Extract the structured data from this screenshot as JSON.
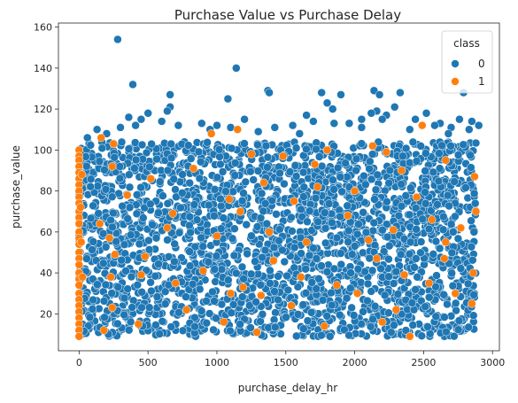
{
  "colors": {
    "class_0": "#1f77b4",
    "class_1": "#ff7f0e",
    "marker_edge": "#ffffff"
  },
  "chart_data": {
    "type": "scatter",
    "title": "Purchase Value vs Purchase Delay",
    "xlabel": "purchase_delay_hr",
    "ylabel": "purchase_value",
    "xlim": [
      -150,
      3050
    ],
    "ylim": [
      2,
      162
    ],
    "xticks": [
      0,
      500,
      1000,
      1500,
      2000,
      2500,
      3000
    ],
    "yticks": [
      20,
      40,
      60,
      80,
      100,
      120,
      140,
      160
    ],
    "grid": false,
    "legend": {
      "title": "class",
      "placement": "top-right",
      "entries": [
        "0",
        "1"
      ]
    },
    "series": [
      {
        "name": "0",
        "color": "#1f77b4",
        "dense_region": {
          "x": [
            0,
            2880
          ],
          "y": [
            9,
            104
          ]
        },
        "points": [
          [
            280,
            154
          ],
          [
            1140,
            140
          ],
          [
            390,
            132
          ],
          [
            660,
            127
          ],
          [
            1080,
            125
          ],
          [
            1370,
            129
          ],
          [
            1380,
            128
          ],
          [
            1760,
            128
          ],
          [
            1900,
            127
          ],
          [
            2140,
            129
          ],
          [
            2180,
            127
          ],
          [
            2330,
            128
          ],
          [
            2790,
            128
          ],
          [
            2520,
            118
          ],
          [
            660,
            121
          ],
          [
            640,
            119
          ],
          [
            2160,
            119
          ],
          [
            2120,
            118
          ],
          [
            2850,
            114
          ],
          [
            1800,
            123
          ],
          [
            1840,
            120
          ],
          [
            2290,
            121
          ],
          [
            1650,
            117
          ],
          [
            1700,
            114
          ],
          [
            2050,
            115
          ],
          [
            2440,
            115
          ],
          [
            360,
            116
          ],
          [
            500,
            118
          ],
          [
            450,
            115
          ],
          [
            1200,
            115
          ],
          [
            1000,
            112
          ],
          [
            890,
            113
          ],
          [
            410,
            112
          ],
          [
            600,
            114
          ],
          [
            1420,
            111
          ],
          [
            1960,
            113
          ],
          [
            2760,
            115
          ],
          [
            2620,
            113
          ],
          [
            2900,
            112
          ],
          [
            2230,
            117
          ],
          [
            2200,
            115
          ],
          [
            2580,
            112
          ],
          [
            300,
            111
          ],
          [
            130,
            110
          ],
          [
            950,
            110
          ],
          [
            2050,
            111
          ],
          [
            720,
            112
          ],
          [
            1850,
            113
          ],
          [
            1550,
            112
          ],
          [
            2700,
            111
          ],
          [
            2830,
            110
          ],
          [
            1100,
            111
          ],
          [
            60,
            106
          ],
          [
            1300,
            109
          ],
          [
            2400,
            110
          ],
          [
            200,
            108
          ],
          [
            1600,
            108
          ],
          [
            2680,
            108
          ]
        ]
      },
      {
        "name": "1",
        "color": "#ff7f0e",
        "points": [
          [
            0,
            100
          ],
          [
            0,
            97
          ],
          [
            0,
            95
          ],
          [
            0,
            92
          ],
          [
            0,
            89
          ],
          [
            0,
            86
          ],
          [
            0,
            83
          ],
          [
            0,
            80
          ],
          [
            0,
            77
          ],
          [
            0,
            74
          ],
          [
            0,
            70
          ],
          [
            0,
            67
          ],
          [
            0,
            64
          ],
          [
            0,
            60
          ],
          [
            0,
            57
          ],
          [
            0,
            54
          ],
          [
            0,
            50
          ],
          [
            0,
            47
          ],
          [
            0,
            44
          ],
          [
            0,
            40
          ],
          [
            0,
            37
          ],
          [
            0,
            34
          ],
          [
            0,
            30
          ],
          [
            0,
            27
          ],
          [
            0,
            24
          ],
          [
            0,
            21
          ],
          [
            0,
            18
          ],
          [
            0,
            15
          ],
          [
            0,
            12
          ],
          [
            0,
            9
          ],
          [
            20,
            88
          ],
          [
            10,
            72
          ],
          [
            15,
            55
          ],
          [
            25,
            38
          ],
          [
            160,
            106
          ],
          [
            250,
            103
          ],
          [
            960,
            108
          ],
          [
            1150,
            110
          ],
          [
            1250,
            98
          ],
          [
            1480,
            97
          ],
          [
            1800,
            100
          ],
          [
            2130,
            102
          ],
          [
            2230,
            99
          ],
          [
            2490,
            112
          ],
          [
            2660,
            95
          ],
          [
            240,
            92
          ],
          [
            830,
            91
          ],
          [
            1710,
            93
          ],
          [
            2340,
            90
          ],
          [
            520,
            86
          ],
          [
            1340,
            84
          ],
          [
            1730,
            82
          ],
          [
            2000,
            80
          ],
          [
            2870,
            87
          ],
          [
            350,
            78
          ],
          [
            1090,
            76
          ],
          [
            1560,
            75
          ],
          [
            2450,
            77
          ],
          [
            680,
            69
          ],
          [
            1170,
            70
          ],
          [
            1950,
            68
          ],
          [
            2560,
            66
          ],
          [
            2880,
            70
          ],
          [
            150,
            64
          ],
          [
            640,
            62
          ],
          [
            1380,
            60
          ],
          [
            2280,
            61
          ],
          [
            2770,
            62
          ],
          [
            220,
            57
          ],
          [
            1000,
            58
          ],
          [
            1650,
            55
          ],
          [
            2100,
            56
          ],
          [
            2660,
            55
          ],
          [
            260,
            49
          ],
          [
            480,
            48
          ],
          [
            1410,
            46
          ],
          [
            2160,
            47
          ],
          [
            2650,
            47
          ],
          [
            450,
            39
          ],
          [
            900,
            41
          ],
          [
            1610,
            38
          ],
          [
            2360,
            39
          ],
          [
            2860,
            40
          ],
          [
            230,
            38
          ],
          [
            700,
            35
          ],
          [
            1190,
            33
          ],
          [
            1870,
            34
          ],
          [
            2540,
            35
          ],
          [
            1100,
            30
          ],
          [
            1320,
            29
          ],
          [
            2020,
            30
          ],
          [
            2730,
            30
          ],
          [
            240,
            23
          ],
          [
            780,
            22
          ],
          [
            1540,
            24
          ],
          [
            2300,
            22
          ],
          [
            2850,
            25
          ],
          [
            430,
            15
          ],
          [
            1050,
            16
          ],
          [
            1780,
            14
          ],
          [
            2200,
            16
          ],
          [
            2400,
            9
          ],
          [
            180,
            12
          ],
          [
            1290,
            11
          ]
        ]
      }
    ]
  }
}
